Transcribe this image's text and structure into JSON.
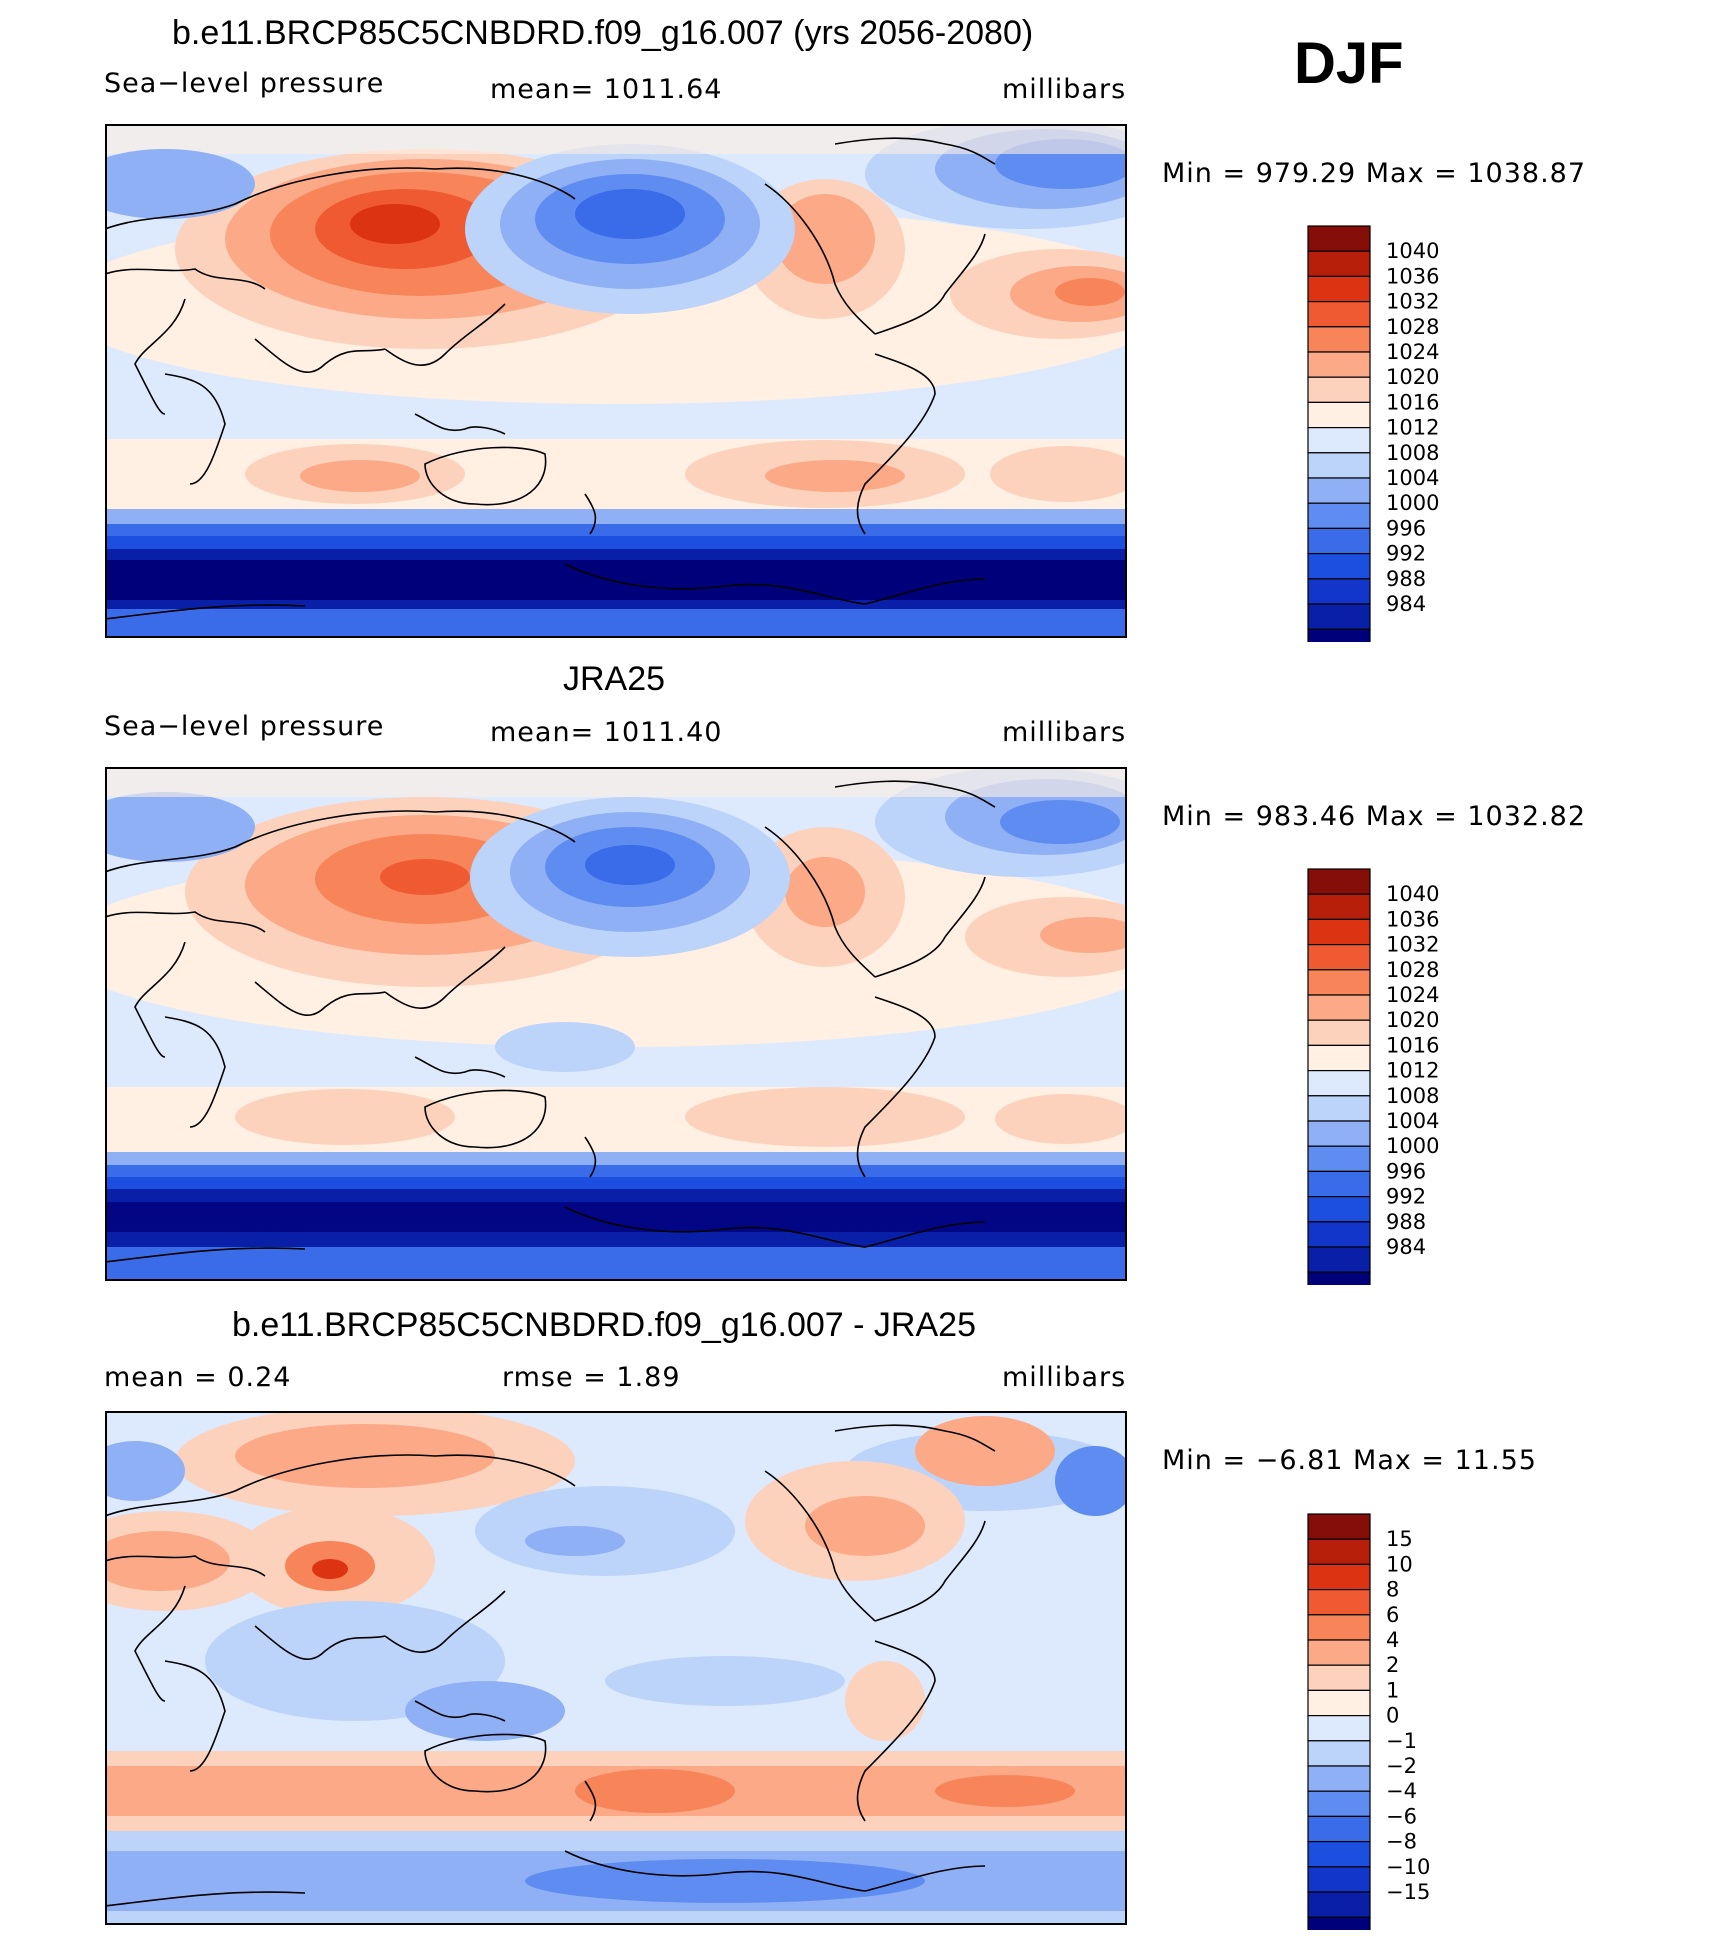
{
  "season": "DJF",
  "colors": {
    "frame": "#000000",
    "coast": "#000000"
  },
  "palette_abs": [
    "#00007a",
    "#0a1fa8",
    "#1236c9",
    "#1c4fe0",
    "#3a6be8",
    "#5f8cf0",
    "#8fb0f5",
    "#bcd3fa",
    "#dde9fc",
    "#fff0e3",
    "#fdd2bd",
    "#fba987",
    "#f78559",
    "#ef5a32",
    "#dc3412",
    "#b81f0a",
    "#850f08"
  ],
  "palette_diff": [
    "#00007a",
    "#0a1fa8",
    "#1236c9",
    "#1c4fe0",
    "#3a6be8",
    "#5f8cf0",
    "#8fb0f5",
    "#bcd3fa",
    "#dde9fc",
    "#fff0e3",
    "#fdd2bd",
    "#fba987",
    "#f78559",
    "#ef5a32",
    "#dc3412",
    "#b81f0a",
    "#850f08"
  ],
  "chart_data": [
    {
      "type": "heatmap",
      "title": "b.e11.BRCP85C5CNBDRD.f09_g16.007 (yrs 2056-2080)",
      "left_label": "Sea−level pressure",
      "center_label": "mean=  1011.64",
      "right_label": "millibars",
      "stats": "Min  =  979.29  Max  =  1038.87",
      "min": 979.29,
      "max": 1038.87,
      "mean": 1011.64,
      "colorbar_levels": [
        "1040",
        "1036",
        "1032",
        "1028",
        "1024",
        "1020",
        "1016",
        "1012",
        "1008",
        "1004",
        "1000",
        "996",
        "992",
        "988",
        "984"
      ]
    },
    {
      "type": "heatmap",
      "title": "JRA25",
      "left_label": "Sea−level pressure",
      "center_label": "mean=  1011.40",
      "right_label": "millibars",
      "stats": "Min  =  983.46  Max  =  1032.82",
      "min": 983.46,
      "max": 1032.82,
      "mean": 1011.4,
      "colorbar_levels": [
        "1040",
        "1036",
        "1032",
        "1028",
        "1024",
        "1020",
        "1016",
        "1012",
        "1008",
        "1004",
        "1000",
        "996",
        "992",
        "988",
        "984"
      ]
    },
    {
      "type": "heatmap",
      "title": "b.e11.BRCP85C5CNBDRD.f09_g16.007 - JRA25",
      "left_label": "mean  =     0.24",
      "center_label": "rmse  =     1.89",
      "right_label": "millibars",
      "stats": "Min  =    −6.81  Max  =    11.55",
      "min": -6.81,
      "max": 11.55,
      "mean": 0.24,
      "rmse": 1.89,
      "colorbar_levels": [
        "15",
        "10",
        "8",
        "6",
        "4",
        "2",
        "1",
        "0",
        "−1",
        "−2",
        "−4",
        "−6",
        "−8",
        "−10",
        "−15"
      ]
    }
  ]
}
